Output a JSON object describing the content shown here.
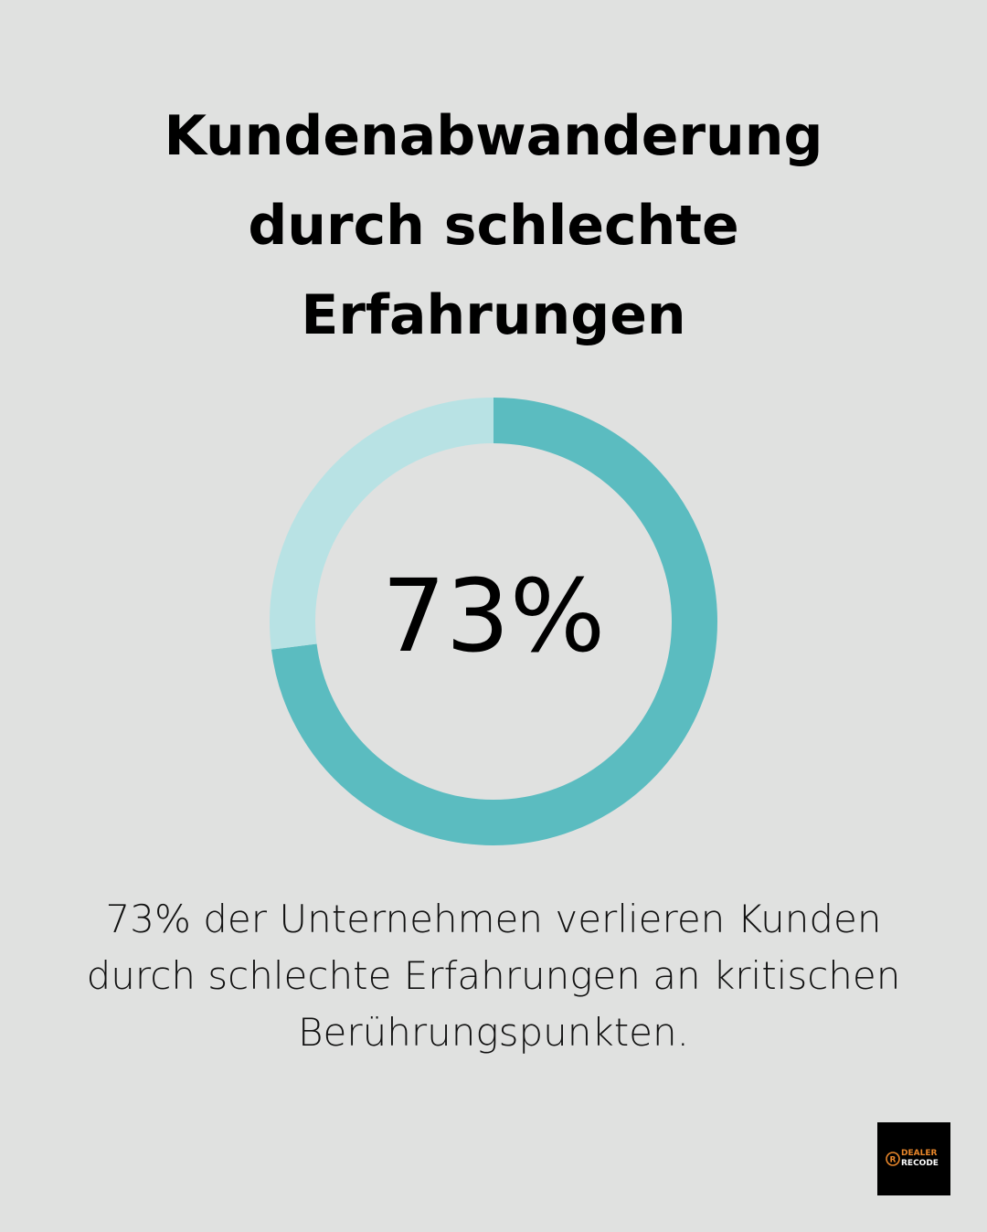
{
  "chart_data": {
    "type": "donut",
    "title": "Kundenabwanderung durch schlechte Erfahrungen",
    "values": [
      73,
      27
    ],
    "value_labels": [
      "73%",
      null
    ],
    "colors": [
      "#5bbcc0",
      "#b8e2e4"
    ],
    "caption": "73% der Unternehmen verlieren Kunden durch schlechte Erfahrungen an kritischen Berührungspunkten."
  },
  "logo": {
    "line1": "DEALER",
    "line2": "RECODE"
  }
}
